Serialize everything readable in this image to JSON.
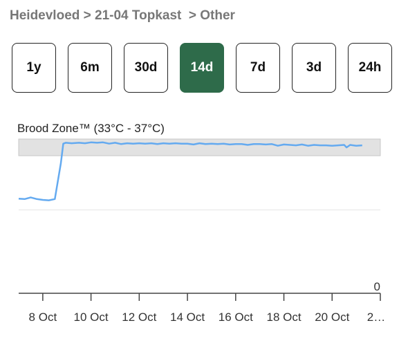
{
  "breadcrumb": {
    "part1": "Heidevloed",
    "sep1": " > ",
    "part2": "21-04 Topkast",
    "sep2": "  > ",
    "part3": "Other"
  },
  "range_buttons": [
    {
      "label": "1y",
      "active": false
    },
    {
      "label": "6m",
      "active": false
    },
    {
      "label": "30d",
      "active": false
    },
    {
      "label": "14d",
      "active": true
    },
    {
      "label": "7d",
      "active": false
    },
    {
      "label": "3d",
      "active": false
    },
    {
      "label": "24h",
      "active": false
    }
  ],
  "colors": {
    "active_button": "#2e6b4a",
    "line": "#64aaf0",
    "zone_band": "#e2e2e2"
  },
  "chart_data": {
    "type": "line",
    "title": "Brood Zone™ (33°C - 37°C)",
    "band": [
      33,
      37
    ],
    "ylim": [
      0,
      38
    ],
    "y_tick_labels": [
      "0"
    ],
    "x_tick_labels": [
      "8 Oct",
      "10 Oct",
      "12 Oct",
      "14 Oct",
      "16 Oct",
      "18 Oct",
      "20 Oct",
      "2…"
    ],
    "xlim": [
      7.0,
      22.0
    ],
    "x_ticks": [
      8,
      10,
      12,
      14,
      16,
      18,
      20,
      22
    ],
    "grid": true,
    "series": [
      {
        "x": [
          7.0,
          7.25,
          7.5,
          7.75,
          8.0,
          8.25,
          8.5,
          8.75,
          8.85,
          8.95,
          9.2,
          9.5,
          9.75,
          10.0,
          10.25,
          10.5,
          10.75,
          11.0,
          11.25,
          11.5,
          11.75,
          12.0,
          12.25,
          12.5,
          12.75,
          13.0,
          13.25,
          13.5,
          13.75,
          14.0,
          14.25,
          14.5,
          14.75,
          15.0,
          15.25,
          15.5,
          15.75,
          16.0,
          16.25,
          16.5,
          16.75,
          17.0,
          17.25,
          17.5,
          17.75,
          18.0,
          18.25,
          18.5,
          18.75,
          19.0,
          19.25,
          19.5,
          19.75,
          20.0,
          20.25,
          20.5,
          20.6,
          20.75,
          21.0,
          21.25
        ],
        "values": [
          22.7,
          22.6,
          23.0,
          22.6,
          22.4,
          22.3,
          22.6,
          31.2,
          35.9,
          36.1,
          36.0,
          36.1,
          36.0,
          36.2,
          36.1,
          36.2,
          35.9,
          36.1,
          35.8,
          36.0,
          35.9,
          36.0,
          35.9,
          36.0,
          35.8,
          36.0,
          35.9,
          36.0,
          35.9,
          35.9,
          35.7,
          36.0,
          35.8,
          35.9,
          35.8,
          35.9,
          35.7,
          35.8,
          35.8,
          35.6,
          35.8,
          35.8,
          35.7,
          35.8,
          35.4,
          35.7,
          35.6,
          35.5,
          35.7,
          35.4,
          35.6,
          35.5,
          35.5,
          35.4,
          35.5,
          35.6,
          35.0,
          35.6,
          35.4,
          35.5
        ]
      }
    ]
  }
}
